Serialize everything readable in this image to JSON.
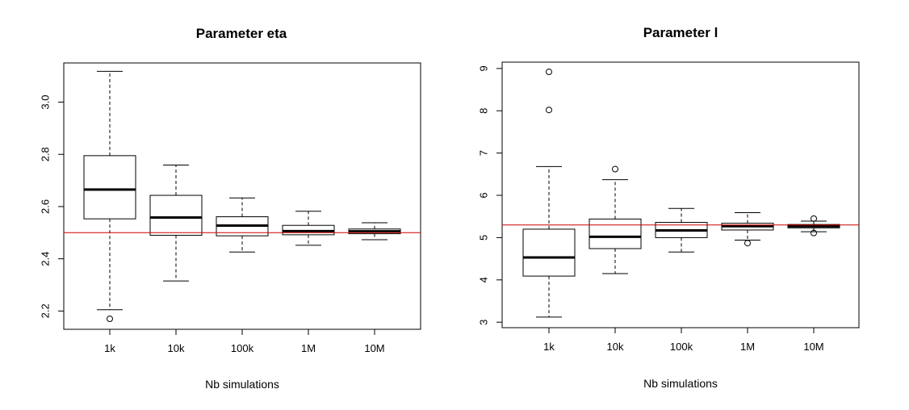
{
  "chart_data": [
    {
      "type": "boxplot",
      "title": "Parameter eta",
      "xlabel": "Nb simulations",
      "ylabel": "",
      "categories": [
        "1k",
        "10k",
        "100k",
        "1M",
        "10M"
      ],
      "ylim": [
        2.13,
        3.15
      ],
      "yticks": [
        "2.2",
        "2.4",
        "2.6",
        "2.8",
        "3.0"
      ],
      "reference_line": 2.5,
      "reference_color": "#cc0000",
      "boxes": [
        {
          "whisker_low": 2.205,
          "q1": 2.553,
          "median": 2.665,
          "q3": 2.795,
          "whisker_high": 3.118,
          "outliers": [
            2.17
          ]
        },
        {
          "whisker_low": 2.315,
          "q1": 2.49,
          "median": 2.558,
          "q3": 2.643,
          "whisker_high": 2.759,
          "outliers": []
        },
        {
          "whisker_low": 2.426,
          "q1": 2.488,
          "median": 2.527,
          "q3": 2.561,
          "whisker_high": 2.633,
          "outliers": []
        },
        {
          "whisker_low": 2.452,
          "q1": 2.492,
          "median": 2.506,
          "q3": 2.528,
          "whisker_high": 2.582,
          "outliers": []
        },
        {
          "whisker_low": 2.473,
          "q1": 2.496,
          "median": 2.505,
          "q3": 2.514,
          "whisker_high": 2.538,
          "outliers": []
        }
      ]
    },
    {
      "type": "boxplot",
      "title": "Parameter l",
      "xlabel": "Nb simulations",
      "ylabel": "",
      "categories": [
        "1k",
        "10k",
        "100k",
        "1M",
        "10M"
      ],
      "ylim": [
        2.87,
        9.15
      ],
      "yticks": [
        "3",
        "4",
        "5",
        "6",
        "7",
        "8",
        "9"
      ],
      "reference_line": 5.3,
      "reference_color": "#cc0000",
      "boxes": [
        {
          "whisker_low": 3.12,
          "q1": 4.09,
          "median": 4.53,
          "q3": 5.2,
          "whisker_high": 6.68,
          "outliers": [
            8.02,
            8.92
          ]
        },
        {
          "whisker_low": 4.15,
          "q1": 4.74,
          "median": 5.02,
          "q3": 5.44,
          "whisker_high": 6.37,
          "outliers": [
            6.62
          ]
        },
        {
          "whisker_low": 4.66,
          "q1": 5.0,
          "median": 5.17,
          "q3": 5.36,
          "whisker_high": 5.69,
          "outliers": []
        },
        {
          "whisker_low": 4.94,
          "q1": 5.18,
          "median": 5.27,
          "q3": 5.34,
          "whisker_high": 5.59,
          "outliers": [
            4.87
          ]
        },
        {
          "whisker_low": 5.14,
          "q1": 5.23,
          "median": 5.27,
          "q3": 5.31,
          "whisker_high": 5.39,
          "outliers": [
            5.11,
            5.45
          ]
        }
      ]
    }
  ]
}
